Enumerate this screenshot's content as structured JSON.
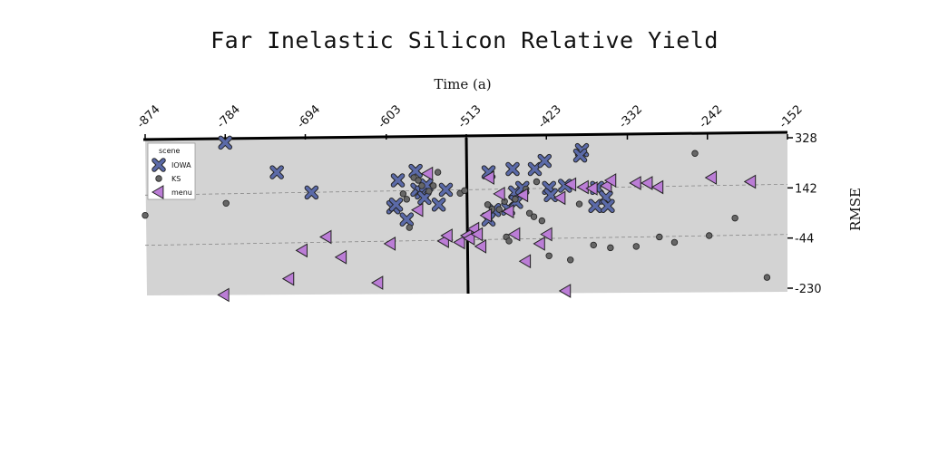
{
  "chart_data": {
    "type": "scatter",
    "title": "Far Inelastic Silicon Relative Yield",
    "xlabel": "Time (a)",
    "ylabel": "RMSE",
    "xlim": [
      -874,
      -152
    ],
    "ylim": [
      -230,
      328
    ],
    "x_ticks": [
      "-874",
      "-784",
      "-694",
      "-603",
      "-513",
      "-423",
      "-332",
      "-242",
      "-152"
    ],
    "y_ticks": [
      "328",
      "142",
      "-44",
      "-230"
    ],
    "x_axis_position": "top",
    "y_axis_position": "right",
    "vertical_line_x": -513,
    "grid": "dashed horizontal",
    "background": "#d3d3d3",
    "legend": {
      "title": "scene",
      "placement": "top-left"
    },
    "series": [
      {
        "name": "IOWA",
        "marker": "x",
        "color": "#5b6aa8",
        "points": [
          [
            -784,
            310
          ],
          [
            -726,
            200
          ],
          [
            -687,
            125
          ],
          [
            -595,
            70
          ],
          [
            -592,
            80
          ],
          [
            -590,
            170
          ],
          [
            -580,
            25
          ],
          [
            -570,
            205
          ],
          [
            -568,
            135
          ],
          [
            -563,
            125
          ],
          [
            -560,
            105
          ],
          [
            -558,
            152
          ],
          [
            -544,
            80
          ],
          [
            -536,
            135
          ],
          [
            -482,
            60
          ],
          [
            -488,
            25
          ],
          [
            -488,
            200
          ],
          [
            -466,
            65
          ],
          [
            -461,
            212
          ],
          [
            -458,
            125
          ],
          [
            -457,
            90
          ],
          [
            -450,
            142
          ],
          [
            -436,
            212
          ],
          [
            -425,
            242
          ],
          [
            -420,
            142
          ],
          [
            -418,
            115
          ],
          [
            -402,
            150
          ],
          [
            -383,
            282
          ],
          [
            -368,
            75
          ],
          [
            -385,
            262
          ],
          [
            -366,
            142
          ],
          [
            -356,
            106
          ],
          [
            -354,
            75
          ]
        ]
      },
      {
        "name": "KS",
        "marker": "o",
        "color": "#666666",
        "points": [
          [
            -874,
            40
          ],
          [
            -783,
            85
          ],
          [
            -584,
            120
          ],
          [
            -580,
            100
          ],
          [
            -577,
            -5
          ],
          [
            -572,
            180
          ],
          [
            -567,
            170
          ],
          [
            -563,
            150
          ],
          [
            -555,
            130
          ],
          [
            -550,
            150
          ],
          [
            -545,
            200
          ],
          [
            -520,
            122
          ],
          [
            -515,
            132
          ],
          [
            -489,
            80
          ],
          [
            -484,
            63
          ],
          [
            -476,
            62
          ],
          [
            -470,
            92
          ],
          [
            -468,
            -40
          ],
          [
            -465,
            -55
          ],
          [
            -458,
            100
          ],
          [
            -446,
            138
          ],
          [
            -442,
            48
          ],
          [
            -437,
            35
          ],
          [
            -434,
            165
          ],
          [
            -428,
            20
          ],
          [
            -420,
            -110
          ],
          [
            -396,
            -125
          ],
          [
            -386,
            82
          ],
          [
            -370,
            -70
          ],
          [
            -351,
            -80
          ],
          [
            -322,
            -75
          ],
          [
            -296,
            -40
          ],
          [
            -279,
            -60
          ],
          [
            -256,
            270
          ],
          [
            -240,
            -35
          ],
          [
            -211,
            30
          ],
          [
            -175,
            -190
          ]
        ]
      },
      {
        "name": "menu",
        "marker": "<",
        "color": "#bb7dd6",
        "points": [
          [
            -785,
            -255
          ],
          [
            -712,
            -195
          ],
          [
            -697,
            -90
          ],
          [
            -670,
            -40
          ],
          [
            -653,
            -115
          ],
          [
            -612,
            -210
          ],
          [
            -598,
            -65
          ],
          [
            -567,
            60
          ],
          [
            -556,
            195
          ],
          [
            -538,
            -55
          ],
          [
            -534,
            -35
          ],
          [
            -520,
            -60
          ],
          [
            -512,
            -35
          ],
          [
            -509,
            -45
          ],
          [
            -504,
            -10
          ],
          [
            -500,
            -30
          ],
          [
            -496,
            -75
          ],
          [
            -490,
            40
          ],
          [
            -487,
            180
          ],
          [
            -475,
            120
          ],
          [
            -465,
            55
          ],
          [
            -458,
            -30
          ],
          [
            -449,
            115
          ],
          [
            -446,
            -130
          ],
          [
            -430,
            -65
          ],
          [
            -422,
            -30
          ],
          [
            -407,
            105
          ],
          [
            -401,
            -240
          ],
          [
            -395,
            155
          ],
          [
            -381,
            145
          ],
          [
            -371,
            140
          ],
          [
            -355,
            150
          ],
          [
            -350,
            170
          ],
          [
            -322,
            160
          ],
          [
            -309,
            160
          ],
          [
            -297,
            145
          ],
          [
            -237,
            180
          ],
          [
            -193,
            165
          ]
        ]
      }
    ]
  }
}
